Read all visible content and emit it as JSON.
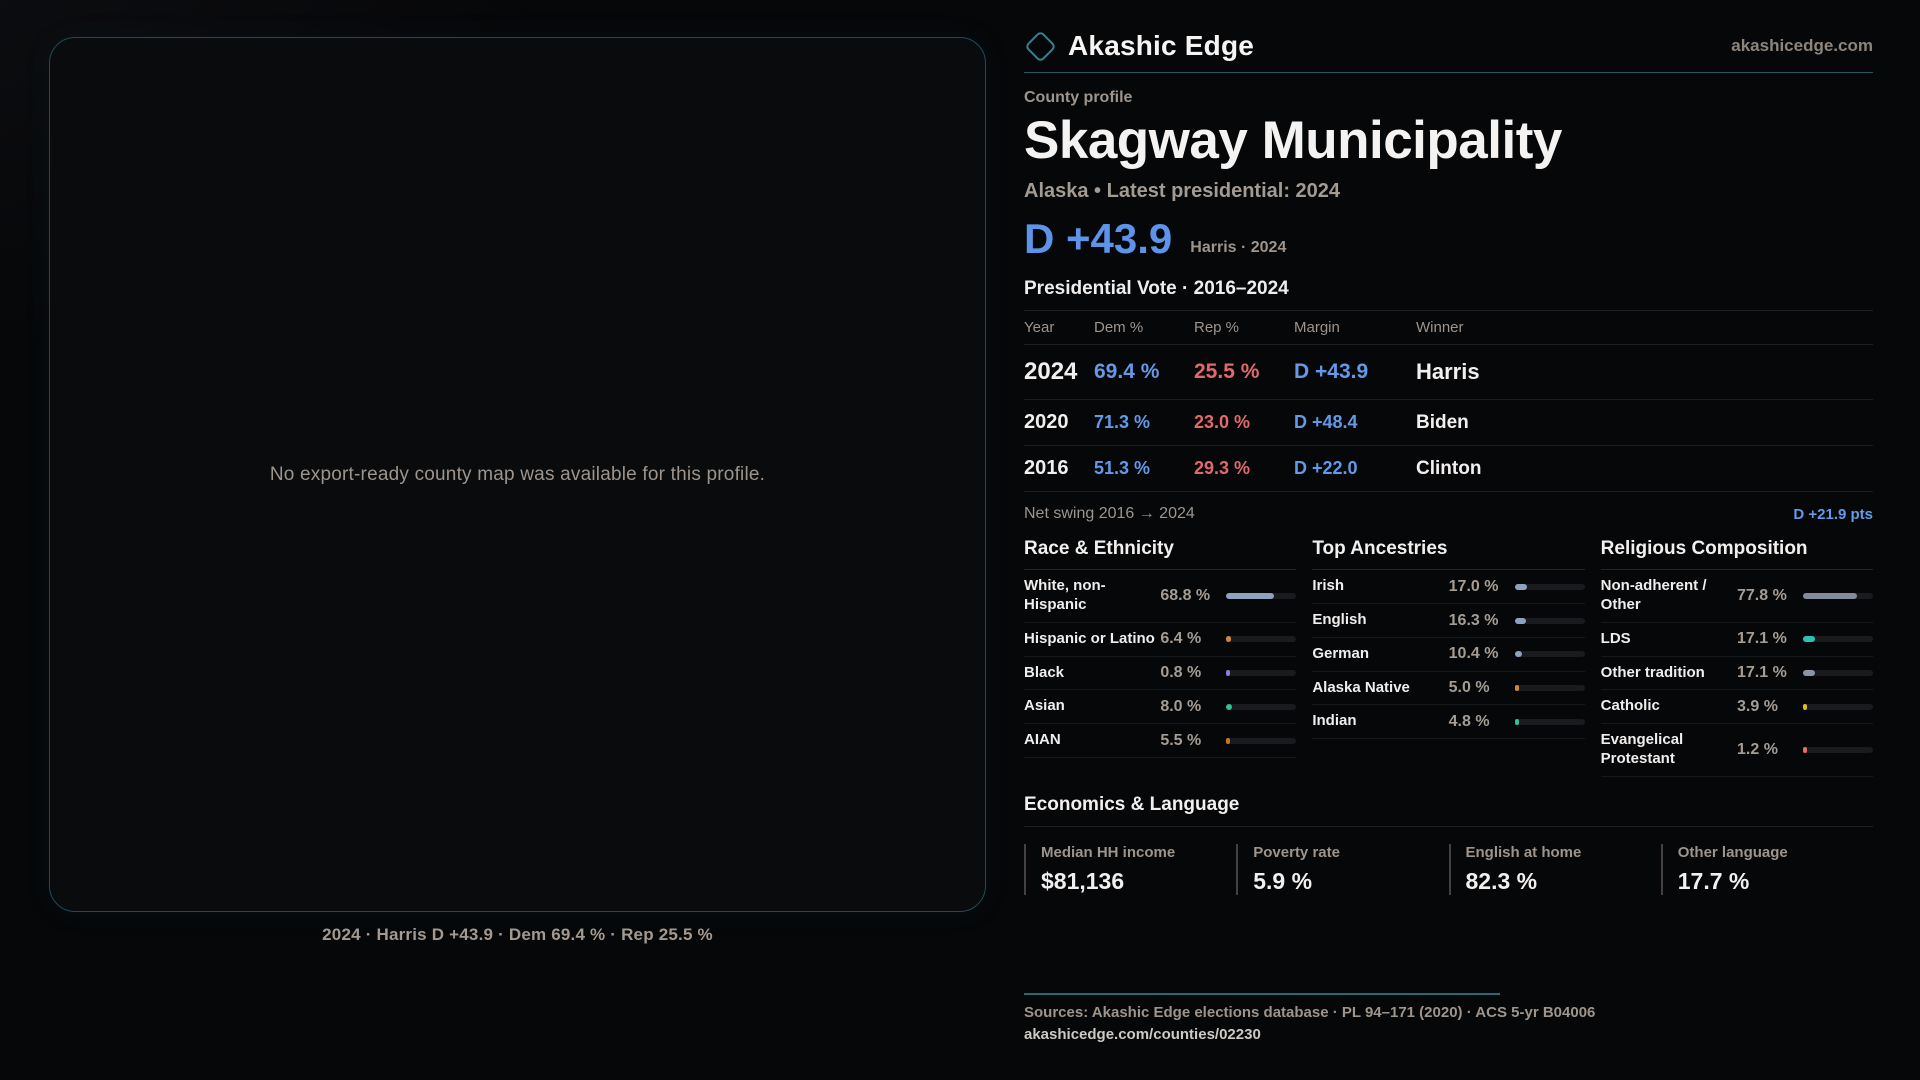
{
  "brand": {
    "name": "Akashic Edge",
    "domain": "akashicedge.com"
  },
  "map_panel": {
    "placeholder": "No export-ready county map was available for this profile.",
    "caption": "2024 · Harris D +43.9 · Dem 69.4 % · Rep 25.5 %"
  },
  "profile": {
    "eyebrow": "County profile",
    "title": "Skagway Municipality",
    "subtitle": "Alaska • Latest presidential: 2024",
    "margin_value": "D +43.9",
    "margin_context": "Harris · 2024"
  },
  "vote_table": {
    "title": "Presidential Vote · 2016–2024",
    "columns": [
      "Year",
      "Dem %",
      "Rep %",
      "Margin",
      "Winner"
    ],
    "rows": [
      {
        "year": "2024",
        "dem": "69.4 %",
        "rep": "25.5 %",
        "margin": "D +43.9",
        "winner": "Harris"
      },
      {
        "year": "2020",
        "dem": "71.3 %",
        "rep": "23.0 %",
        "margin": "D +48.4",
        "winner": "Biden"
      },
      {
        "year": "2016",
        "dem": "51.3 %",
        "rep": "29.3 %",
        "margin": "D +22.0",
        "winner": "Clinton"
      }
    ],
    "net_swing_label": "Net swing 2016 → 2024",
    "net_swing_value": "D +21.9 pts"
  },
  "stat_columns": [
    {
      "title": "Race & Ethnicity",
      "rows": [
        {
          "label": "White, non-Hispanic",
          "value": "68.8 %",
          "pct": 68.8,
          "color": "#8ea2bd"
        },
        {
          "label": "Hispanic or Latino",
          "value": "6.4 %",
          "pct": 6.4,
          "color": "#cf8a2e"
        },
        {
          "label": "Black",
          "value": "0.8 %",
          "pct": 0.8,
          "color": "#8b7ae0"
        },
        {
          "label": "Asian",
          "value": "8.0 %",
          "pct": 8.0,
          "color": "#2dc48e"
        },
        {
          "label": "AIAN",
          "value": "5.5 %",
          "pct": 5.5,
          "color": "#c27722"
        }
      ]
    },
    {
      "title": "Top Ancestries",
      "rows": [
        {
          "label": "Irish",
          "value": "17.0 %",
          "pct": 17.0,
          "color": "#8ea2bd"
        },
        {
          "label": "English",
          "value": "16.3 %",
          "pct": 16.3,
          "color": "#8ea2bd"
        },
        {
          "label": "German",
          "value": "10.4 %",
          "pct": 10.4,
          "color": "#8ea2bd"
        },
        {
          "label": "Alaska Native",
          "value": "5.0 %",
          "pct": 5.0,
          "color": "#cf8a2e"
        },
        {
          "label": "Indian",
          "value": "4.8 %",
          "pct": 4.8,
          "color": "#2dc48e"
        }
      ]
    },
    {
      "title": "Religious Composition",
      "rows": [
        {
          "label": "Non-adherent / Other",
          "value": "77.8 %",
          "pct": 77.8,
          "color": "#828b9a"
        },
        {
          "label": "LDS",
          "value": "17.1 %",
          "pct": 17.1,
          "color": "#2cc4b0"
        },
        {
          "label": "Other tradition",
          "value": "17.1 %",
          "pct": 17.1,
          "color": "#8a95a5"
        },
        {
          "label": "Catholic",
          "value": "3.9 %",
          "pct": 3.9,
          "color": "#e3b42d"
        },
        {
          "label": "Evangelical Protestant",
          "value": "1.2 %",
          "pct": 1.2,
          "color": "#e86a6a"
        }
      ]
    }
  ],
  "economics": {
    "title": "Economics & Language",
    "stats": [
      {
        "label": "Median HH income",
        "value": "$81,136"
      },
      {
        "label": "Poverty rate",
        "value": "5.9 %"
      },
      {
        "label": "English at home",
        "value": "82.3 %"
      },
      {
        "label": "Other language",
        "value": "17.7 %"
      }
    ]
  },
  "footer": {
    "sources": "Sources: Akashic Edge elections database · PL 94–171 (2020) · ACS 5-yr B04006",
    "permalink": "akashicedge.com/counties/02230"
  }
}
